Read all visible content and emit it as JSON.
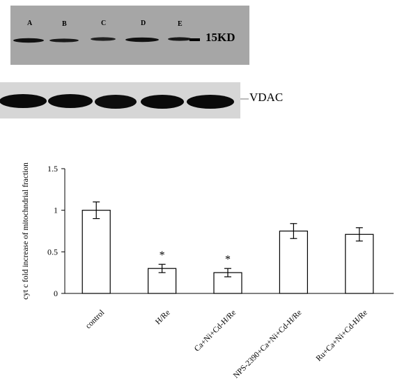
{
  "blot": {
    "lanes": [
      "A",
      "B",
      "C",
      "D",
      "E"
    ],
    "marker_label": "15KD",
    "loading_label": "VDAC"
  },
  "chart_data": {
    "type": "bar",
    "categories": [
      "control",
      "H/Re",
      "Ca+Ni+Cd-H/Re",
      "NPS-2390+Ca+Ni+Cd-H/Re",
      "Ru+Ca+Ni+Cd-H/Re"
    ],
    "values": [
      1.0,
      0.3,
      0.25,
      0.75,
      0.71
    ],
    "errors": [
      0.1,
      0.05,
      0.05,
      0.09,
      0.08
    ],
    "significance": [
      "",
      "*",
      "*",
      "",
      ""
    ],
    "ylabel": "cyt c fold increase of mitochndrial fraction",
    "xlabel": "",
    "ylim": [
      0,
      1.5
    ],
    "yticks": [
      0,
      0.5,
      1,
      1.5
    ],
    "ytick_labels": [
      "0",
      "0.5",
      "1",
      "1.5"
    ],
    "grid": false,
    "bar_fill": "#ffffff",
    "bar_stroke": "#000000"
  }
}
